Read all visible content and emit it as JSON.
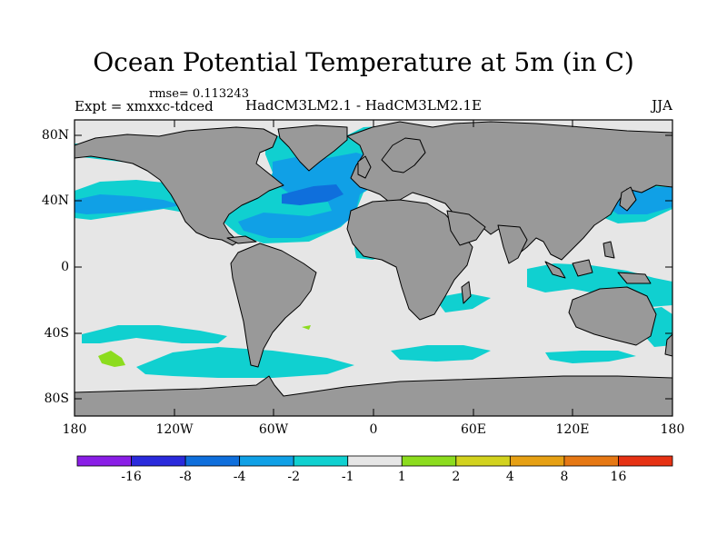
{
  "title": "Ocean Potential Temperature at 5m (in C)",
  "rmse": "rmse= 0.113243",
  "expt": "Expt = xmxxc-tdced",
  "subtitle": "HadCM3LM2.1 - HadCM3LM2.1E",
  "season": "JJA",
  "map": {
    "y_labels": [
      "80N",
      "40N",
      "0",
      "40S",
      "80S"
    ],
    "x_labels": [
      "180",
      "120W",
      "60W",
      "0",
      "60E",
      "120E",
      "180"
    ],
    "colors": {
      "ocean_neutral": "#e6e6e6",
      "land": "#999999",
      "coastline": "#000000"
    }
  },
  "colorbar": {
    "labels": [
      "-16",
      "-8",
      "-4",
      "-2",
      "-1",
      "1",
      "2",
      "4",
      "8",
      "16"
    ],
    "colors": [
      "#8a1ee6",
      "#2a2adc",
      "#0f6fdc",
      "#10a0e6",
      "#10d0d0",
      "#e6e6e6",
      "#8cdc1e",
      "#d2d21e",
      "#e6a014",
      "#e67814",
      "#e63214"
    ]
  }
}
